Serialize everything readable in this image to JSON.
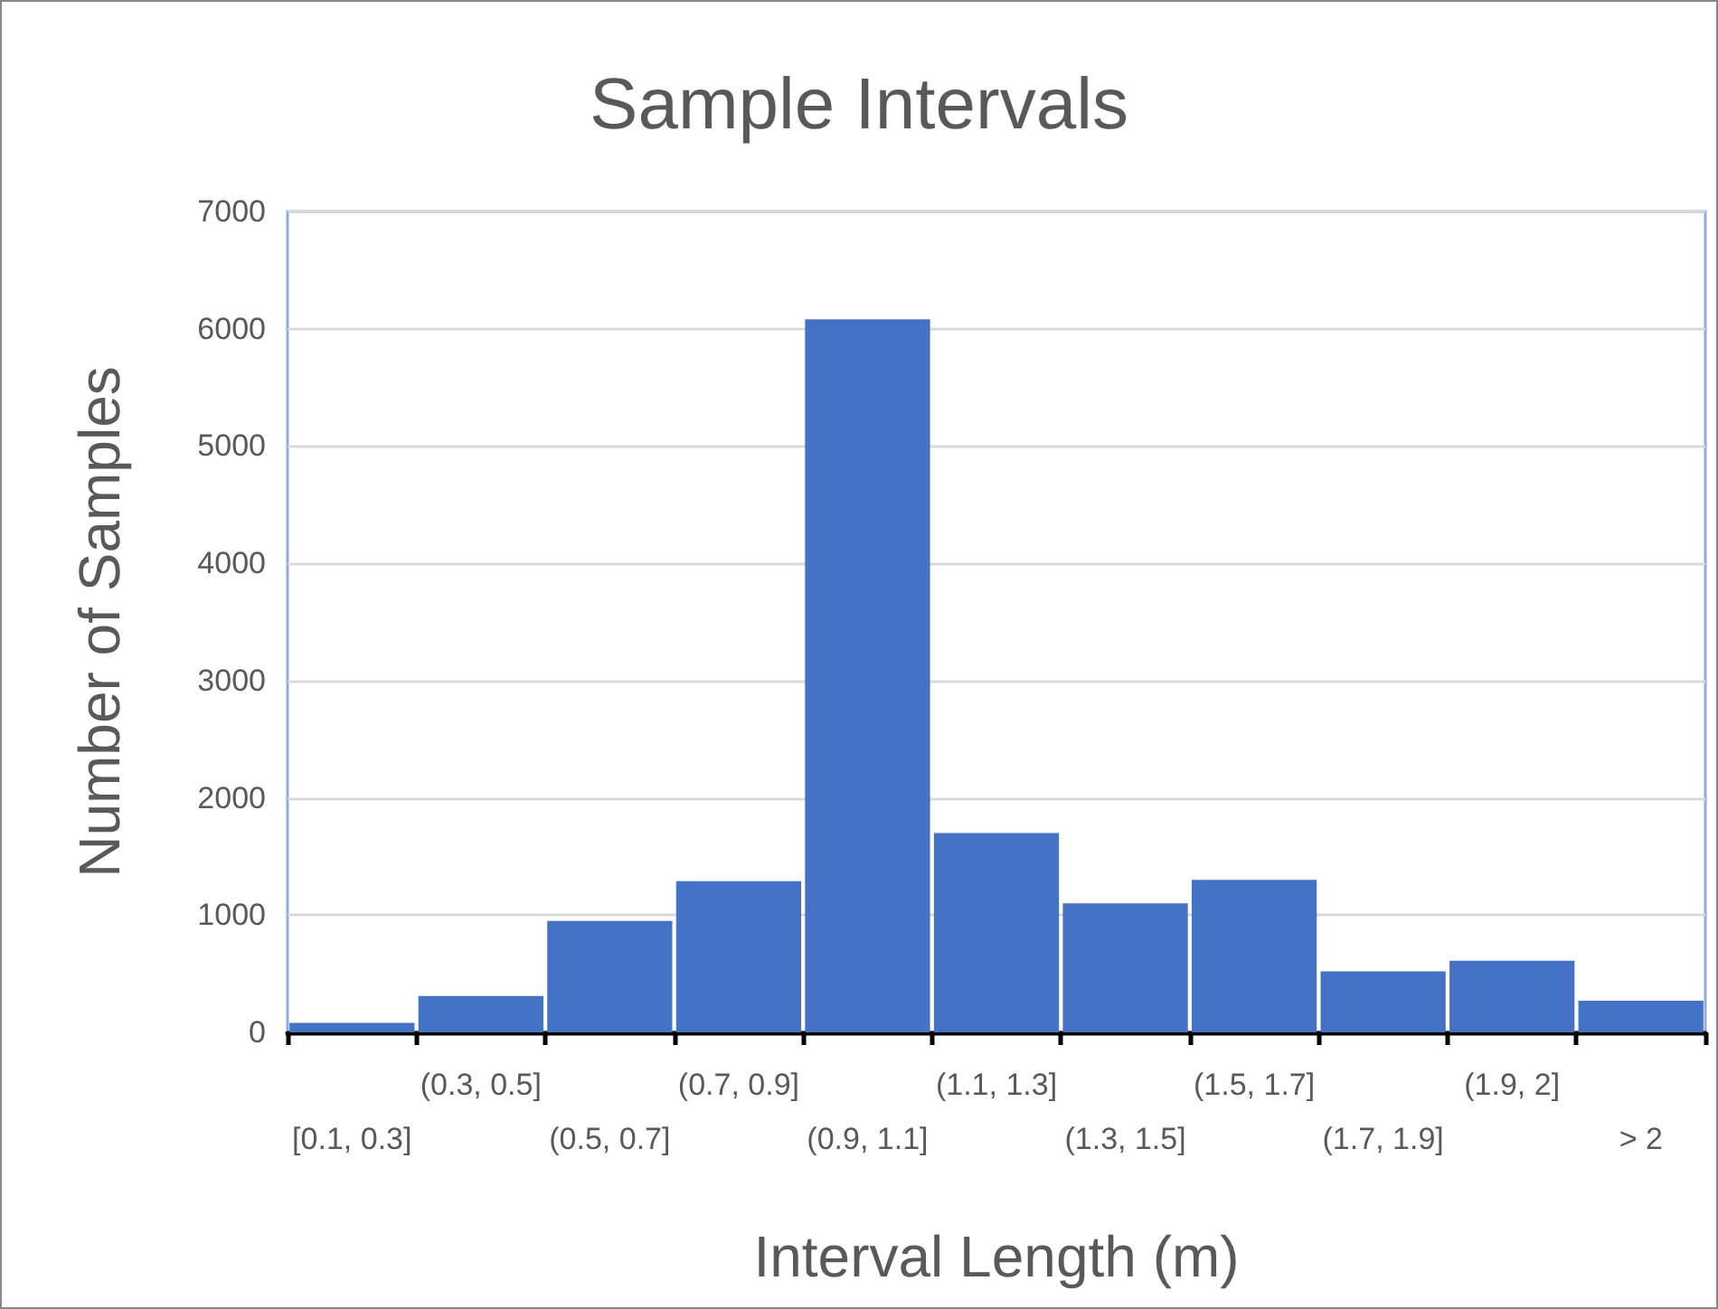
{
  "chart_data": {
    "type": "bar",
    "title": "Sample Intervals",
    "xlabel": "Interval Length (m)",
    "ylabel": "Number of Samples",
    "categories": [
      "[0.1, 0.3]",
      "(0.3, 0.5]",
      "(0.5, 0.7]",
      "(0.7, 0.9]",
      "(0.9, 1.1]",
      "(1.1, 1.3]",
      "(1.3, 1.5]",
      "(1.5, 1.7]",
      "(1.7, 1.9]",
      "(1.9, 2]",
      "> 2"
    ],
    "values": [
      80,
      310,
      950,
      1290,
      6080,
      1700,
      1100,
      1300,
      520,
      610,
      270
    ],
    "color": "#4472c4",
    "ylim": [
      0,
      7000
    ],
    "yticks": [
      0,
      1000,
      2000,
      3000,
      4000,
      5000,
      6000,
      7000
    ],
    "grid": "y"
  }
}
